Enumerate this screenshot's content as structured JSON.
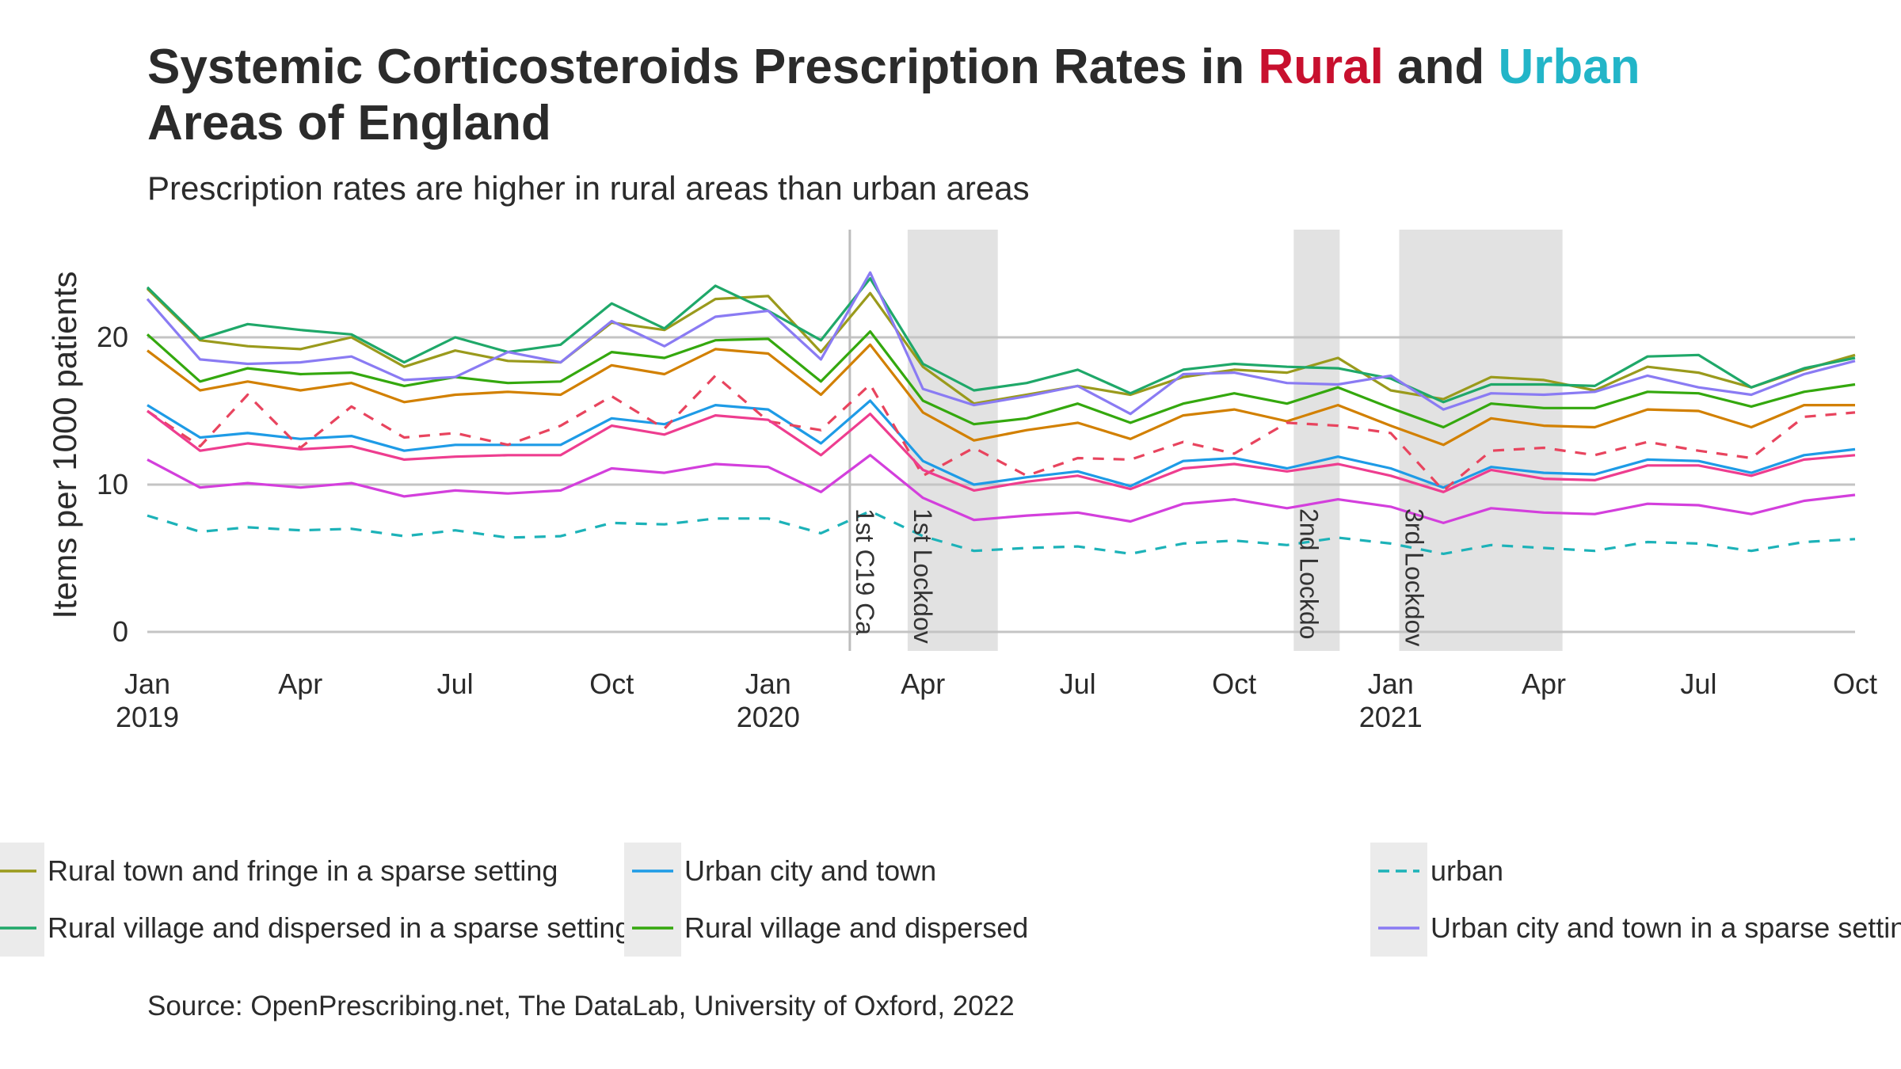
{
  "title": {
    "line1_prefix": "Systemic Corticosteroids Prescription Rates in ",
    "rural_word": "Rural",
    "conjunction": " and ",
    "urban_word": "Urban",
    "line2": "Areas of England",
    "rural_color": "#c8102e",
    "urban_color": "#22b5c8"
  },
  "subtitle": "Prescription rates are higher in rural areas than urban areas",
  "caption": "Source: OpenPrescribing.net, The DataLab, University of Oxford, 2022",
  "chart_data": {
    "type": "line",
    "ylabel": "Items per 1000 patients",
    "xlabel": "",
    "ylim": [
      0,
      24
    ],
    "y_ticks": [
      0,
      10,
      20
    ],
    "grid": true,
    "legend_position": "bottom",
    "x_range": [
      "2019-01",
      "2021-10"
    ],
    "x_ticks": [
      {
        "date": "2019-01",
        "label": "Jan",
        "year": "2019"
      },
      {
        "date": "2019-04",
        "label": "Apr",
        "year": ""
      },
      {
        "date": "2019-07",
        "label": "Jul",
        "year": ""
      },
      {
        "date": "2019-10",
        "label": "Oct",
        "year": ""
      },
      {
        "date": "2020-01",
        "label": "Jan",
        "year": "2020"
      },
      {
        "date": "2020-04",
        "label": "Apr",
        "year": ""
      },
      {
        "date": "2020-07",
        "label": "Jul",
        "year": ""
      },
      {
        "date": "2020-10",
        "label": "Oct",
        "year": ""
      },
      {
        "date": "2021-01",
        "label": "Jan",
        "year": "2021"
      },
      {
        "date": "2021-04",
        "label": "Apr",
        "year": ""
      },
      {
        "date": "2021-07",
        "label": "Jul",
        "year": ""
      },
      {
        "date": "2021-10",
        "label": "Oct",
        "year": ""
      }
    ],
    "x": [
      "2019-01",
      "2019-02",
      "2019-03",
      "2019-04",
      "2019-05",
      "2019-06",
      "2019-07",
      "2019-08",
      "2019-09",
      "2019-10",
      "2019-11",
      "2019-12",
      "2020-01",
      "2020-02",
      "2020-03",
      "2020-04",
      "2020-05",
      "2020-06",
      "2020-07",
      "2020-08",
      "2020-09",
      "2020-10",
      "2020-11",
      "2020-12",
      "2021-01",
      "2021-02",
      "2021-03",
      "2021-04",
      "2021-05",
      "2021-06",
      "2021-07",
      "2021-08",
      "2021-09",
      "2021-10"
    ],
    "events": [
      {
        "type": "line",
        "date": "2020-02-18",
        "label": "1st C19 Ca"
      },
      {
        "type": "span",
        "start": "2020-03-23",
        "end": "2020-05-15",
        "label": "1st Lockdov"
      },
      {
        "type": "span",
        "start": "2020-11-05",
        "end": "2020-12-02",
        "label": "2nd Lockdo"
      },
      {
        "type": "span",
        "start": "2021-01-06",
        "end": "2021-04-12",
        "label": "3rd Lockdov"
      }
    ],
    "series": [
      {
        "name": "Rural town and fringe in a sparse setting",
        "color": "#9a9a1c",
        "dash": false,
        "legend": true,
        "values": [
          23.3,
          19.8,
          19.4,
          19.2,
          20.0,
          18.0,
          19.1,
          18.4,
          18.3,
          21.0,
          20.5,
          22.6,
          22.8,
          19.0,
          23.0,
          18.0,
          15.5,
          16.1,
          16.7,
          16.1,
          17.3,
          17.8,
          17.6,
          18.6,
          16.4,
          15.8,
          17.3,
          17.1,
          16.4,
          18.0,
          17.6,
          16.6,
          17.8,
          18.8
        ]
      },
      {
        "name": "Rural village and dispersed in a sparse setting",
        "color": "#1fa869",
        "dash": false,
        "legend": true,
        "values": [
          23.4,
          19.9,
          20.9,
          20.5,
          20.2,
          18.3,
          20.0,
          19.0,
          19.5,
          22.3,
          20.6,
          23.5,
          21.8,
          19.8,
          24.0,
          18.2,
          16.4,
          16.9,
          17.8,
          16.2,
          17.8,
          18.2,
          18.0,
          17.9,
          17.2,
          15.6,
          16.8,
          16.8,
          16.7,
          18.7,
          18.8,
          16.6,
          17.9,
          18.6
        ]
      },
      {
        "name": "Urban city and town",
        "color": "#1e9be6",
        "dash": false,
        "legend": true,
        "values": [
          15.4,
          13.2,
          13.5,
          13.1,
          13.3,
          12.3,
          12.7,
          12.7,
          12.7,
          14.5,
          14.1,
          15.4,
          15.1,
          12.8,
          15.7,
          11.6,
          10.0,
          10.5,
          10.9,
          9.9,
          11.6,
          11.8,
          11.1,
          11.9,
          11.1,
          9.8,
          11.2,
          10.8,
          10.7,
          11.7,
          11.6,
          10.8,
          12.0,
          12.4
        ]
      },
      {
        "name": "Rural village and dispersed",
        "color": "#34a80e",
        "dash": false,
        "legend": true,
        "values": [
          20.2,
          17.0,
          17.9,
          17.5,
          17.6,
          16.7,
          17.3,
          16.9,
          17.0,
          19.0,
          18.6,
          19.8,
          19.9,
          17.0,
          20.4,
          15.7,
          14.1,
          14.5,
          15.5,
          14.2,
          15.5,
          16.2,
          15.5,
          16.6,
          15.2,
          13.9,
          15.5,
          15.2,
          15.2,
          16.3,
          16.2,
          15.3,
          16.3,
          16.8
        ]
      },
      {
        "name": "urban",
        "color": "#1cb2b8",
        "dash": true,
        "legend": true,
        "values": [
          7.9,
          6.8,
          7.1,
          6.9,
          7.0,
          6.5,
          6.9,
          6.4,
          6.5,
          7.4,
          7.3,
          7.7,
          7.7,
          6.7,
          8.2,
          6.5,
          5.5,
          5.7,
          5.8,
          5.3,
          6.0,
          6.2,
          5.9,
          6.4,
          6.0,
          5.3,
          5.9,
          5.7,
          5.5,
          6.1,
          6.0,
          5.5,
          6.1,
          6.3
        ]
      },
      {
        "name": "Urban city and town in a sparse setting",
        "color": "#8a7bf3",
        "dash": false,
        "legend": true,
        "values": [
          22.6,
          18.5,
          18.2,
          18.3,
          18.7,
          17.1,
          17.3,
          19.0,
          18.3,
          21.1,
          19.4,
          21.4,
          21.8,
          18.5,
          24.4,
          16.5,
          15.4,
          16.0,
          16.7,
          14.8,
          17.5,
          17.6,
          16.9,
          16.8,
          17.4,
          15.1,
          16.2,
          16.1,
          16.3,
          17.4,
          16.6,
          16.1,
          17.5,
          18.4
        ]
      },
      {
        "name": "",
        "color": "#d28000",
        "dash": false,
        "legend": false,
        "values": [
          19.1,
          16.4,
          17.0,
          16.4,
          16.9,
          15.6,
          16.1,
          16.3,
          16.1,
          18.1,
          17.5,
          19.2,
          18.9,
          16.1,
          19.5,
          14.9,
          13.0,
          13.7,
          14.2,
          13.1,
          14.7,
          15.1,
          14.3,
          15.4,
          14.0,
          12.7,
          14.5,
          14.0,
          13.9,
          15.1,
          15.0,
          13.9,
          15.4,
          15.4
        ]
      },
      {
        "name": "",
        "color": "#e8445e",
        "dash": true,
        "legend": false,
        "values": [
          15.0,
          12.6,
          16.1,
          12.5,
          15.3,
          13.2,
          13.5,
          12.7,
          14.0,
          16.0,
          13.8,
          17.4,
          14.3,
          13.7,
          16.8,
          10.6,
          12.5,
          10.6,
          11.8,
          11.7,
          12.9,
          12.1,
          14.2,
          14.0,
          13.5,
          9.6,
          12.3,
          12.5,
          12.0,
          12.9,
          12.3,
          11.8,
          14.6,
          14.9
        ]
      },
      {
        "name": "",
        "color": "#ee3d8f",
        "dash": false,
        "legend": false,
        "values": [
          15.0,
          12.3,
          12.8,
          12.4,
          12.6,
          11.7,
          11.9,
          12.0,
          12.0,
          14.0,
          13.4,
          14.7,
          14.4,
          12.0,
          14.8,
          11.0,
          9.6,
          10.2,
          10.6,
          9.7,
          11.1,
          11.4,
          10.9,
          11.4,
          10.6,
          9.5,
          11.0,
          10.4,
          10.3,
          11.3,
          11.3,
          10.6,
          11.7,
          12.0
        ]
      },
      {
        "name": "",
        "color": "#d33fdc",
        "dash": false,
        "legend": false,
        "values": [
          11.7,
          9.8,
          10.1,
          9.8,
          10.1,
          9.2,
          9.6,
          9.4,
          9.6,
          11.1,
          10.8,
          11.4,
          11.2,
          9.5,
          12.0,
          9.1,
          7.6,
          7.9,
          8.1,
          7.5,
          8.7,
          9.0,
          8.4,
          9.0,
          8.5,
          7.4,
          8.4,
          8.1,
          8.0,
          8.7,
          8.6,
          8.0,
          8.9,
          9.3
        ]
      }
    ]
  }
}
